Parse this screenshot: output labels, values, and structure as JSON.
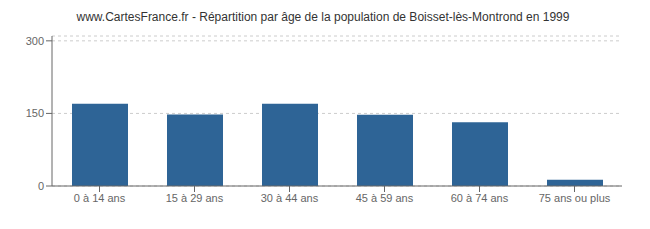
{
  "chart_data": {
    "type": "bar",
    "title": "www.CartesFrance.fr - Répartition par âge de la population de Boisset-lès-Montrond en 1999",
    "categories": [
      "0 à 14 ans",
      "15 à 29 ans",
      "30 à 44 ans",
      "45 à 59 ans",
      "60 à 74 ans",
      "75 ans ou plus"
    ],
    "values": [
      170,
      148,
      170,
      147,
      132,
      13
    ],
    "color": "#2e6496",
    "ylim": [
      0,
      310
    ],
    "yticks": [
      0,
      150,
      300
    ],
    "grid": true
  }
}
